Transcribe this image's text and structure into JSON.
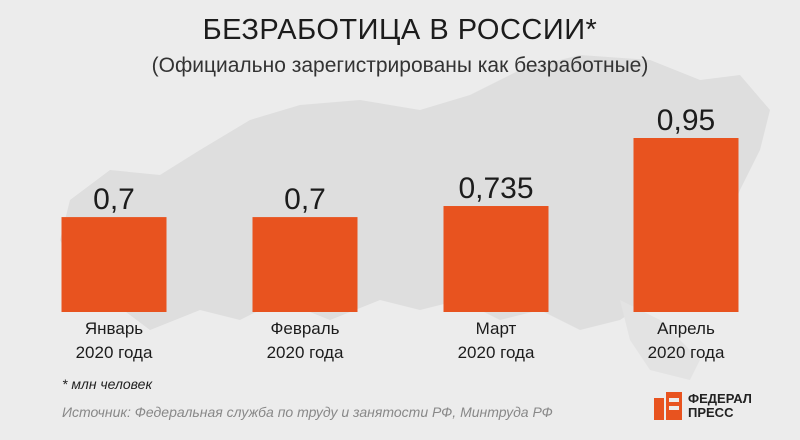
{
  "header": {
    "title": "БЕЗРАБОТИЦА В РОССИИ*",
    "subtitle": "(Официально зарегистрированы как безработные)"
  },
  "footer": {
    "footnote": "* млн человек",
    "source": "Источник: Федеральная служба по труду и занятости РФ, Минтруда РФ"
  },
  "logo": {
    "line1": "ФЕДЕРАЛ",
    "line2": "ПРЕСС"
  },
  "colors": {
    "bar": "#e8531f",
    "text": "#1c1c1c",
    "background": "#ececec",
    "map": "#dcdcdc"
  },
  "chart_data": {
    "type": "bar",
    "title": "БЕЗРАБОТИЦА В РОССИИ*",
    "subtitle": "(Официально зарегистрированы как безработные)",
    "categories": [
      [
        "Январь",
        "2020 года"
      ],
      [
        "Февраль",
        "2020 года"
      ],
      [
        "Март",
        "2020 года"
      ],
      [
        "Апрель",
        "2020 года"
      ]
    ],
    "values": [
      0.7,
      0.7,
      0.735,
      0.95
    ],
    "labels": [
      "0,7",
      "0,7",
      "0,735",
      "0,95"
    ],
    "unit": "млн человек",
    "ylim": [
      0.4,
      0.95
    ],
    "grid": false,
    "legend": "none"
  }
}
